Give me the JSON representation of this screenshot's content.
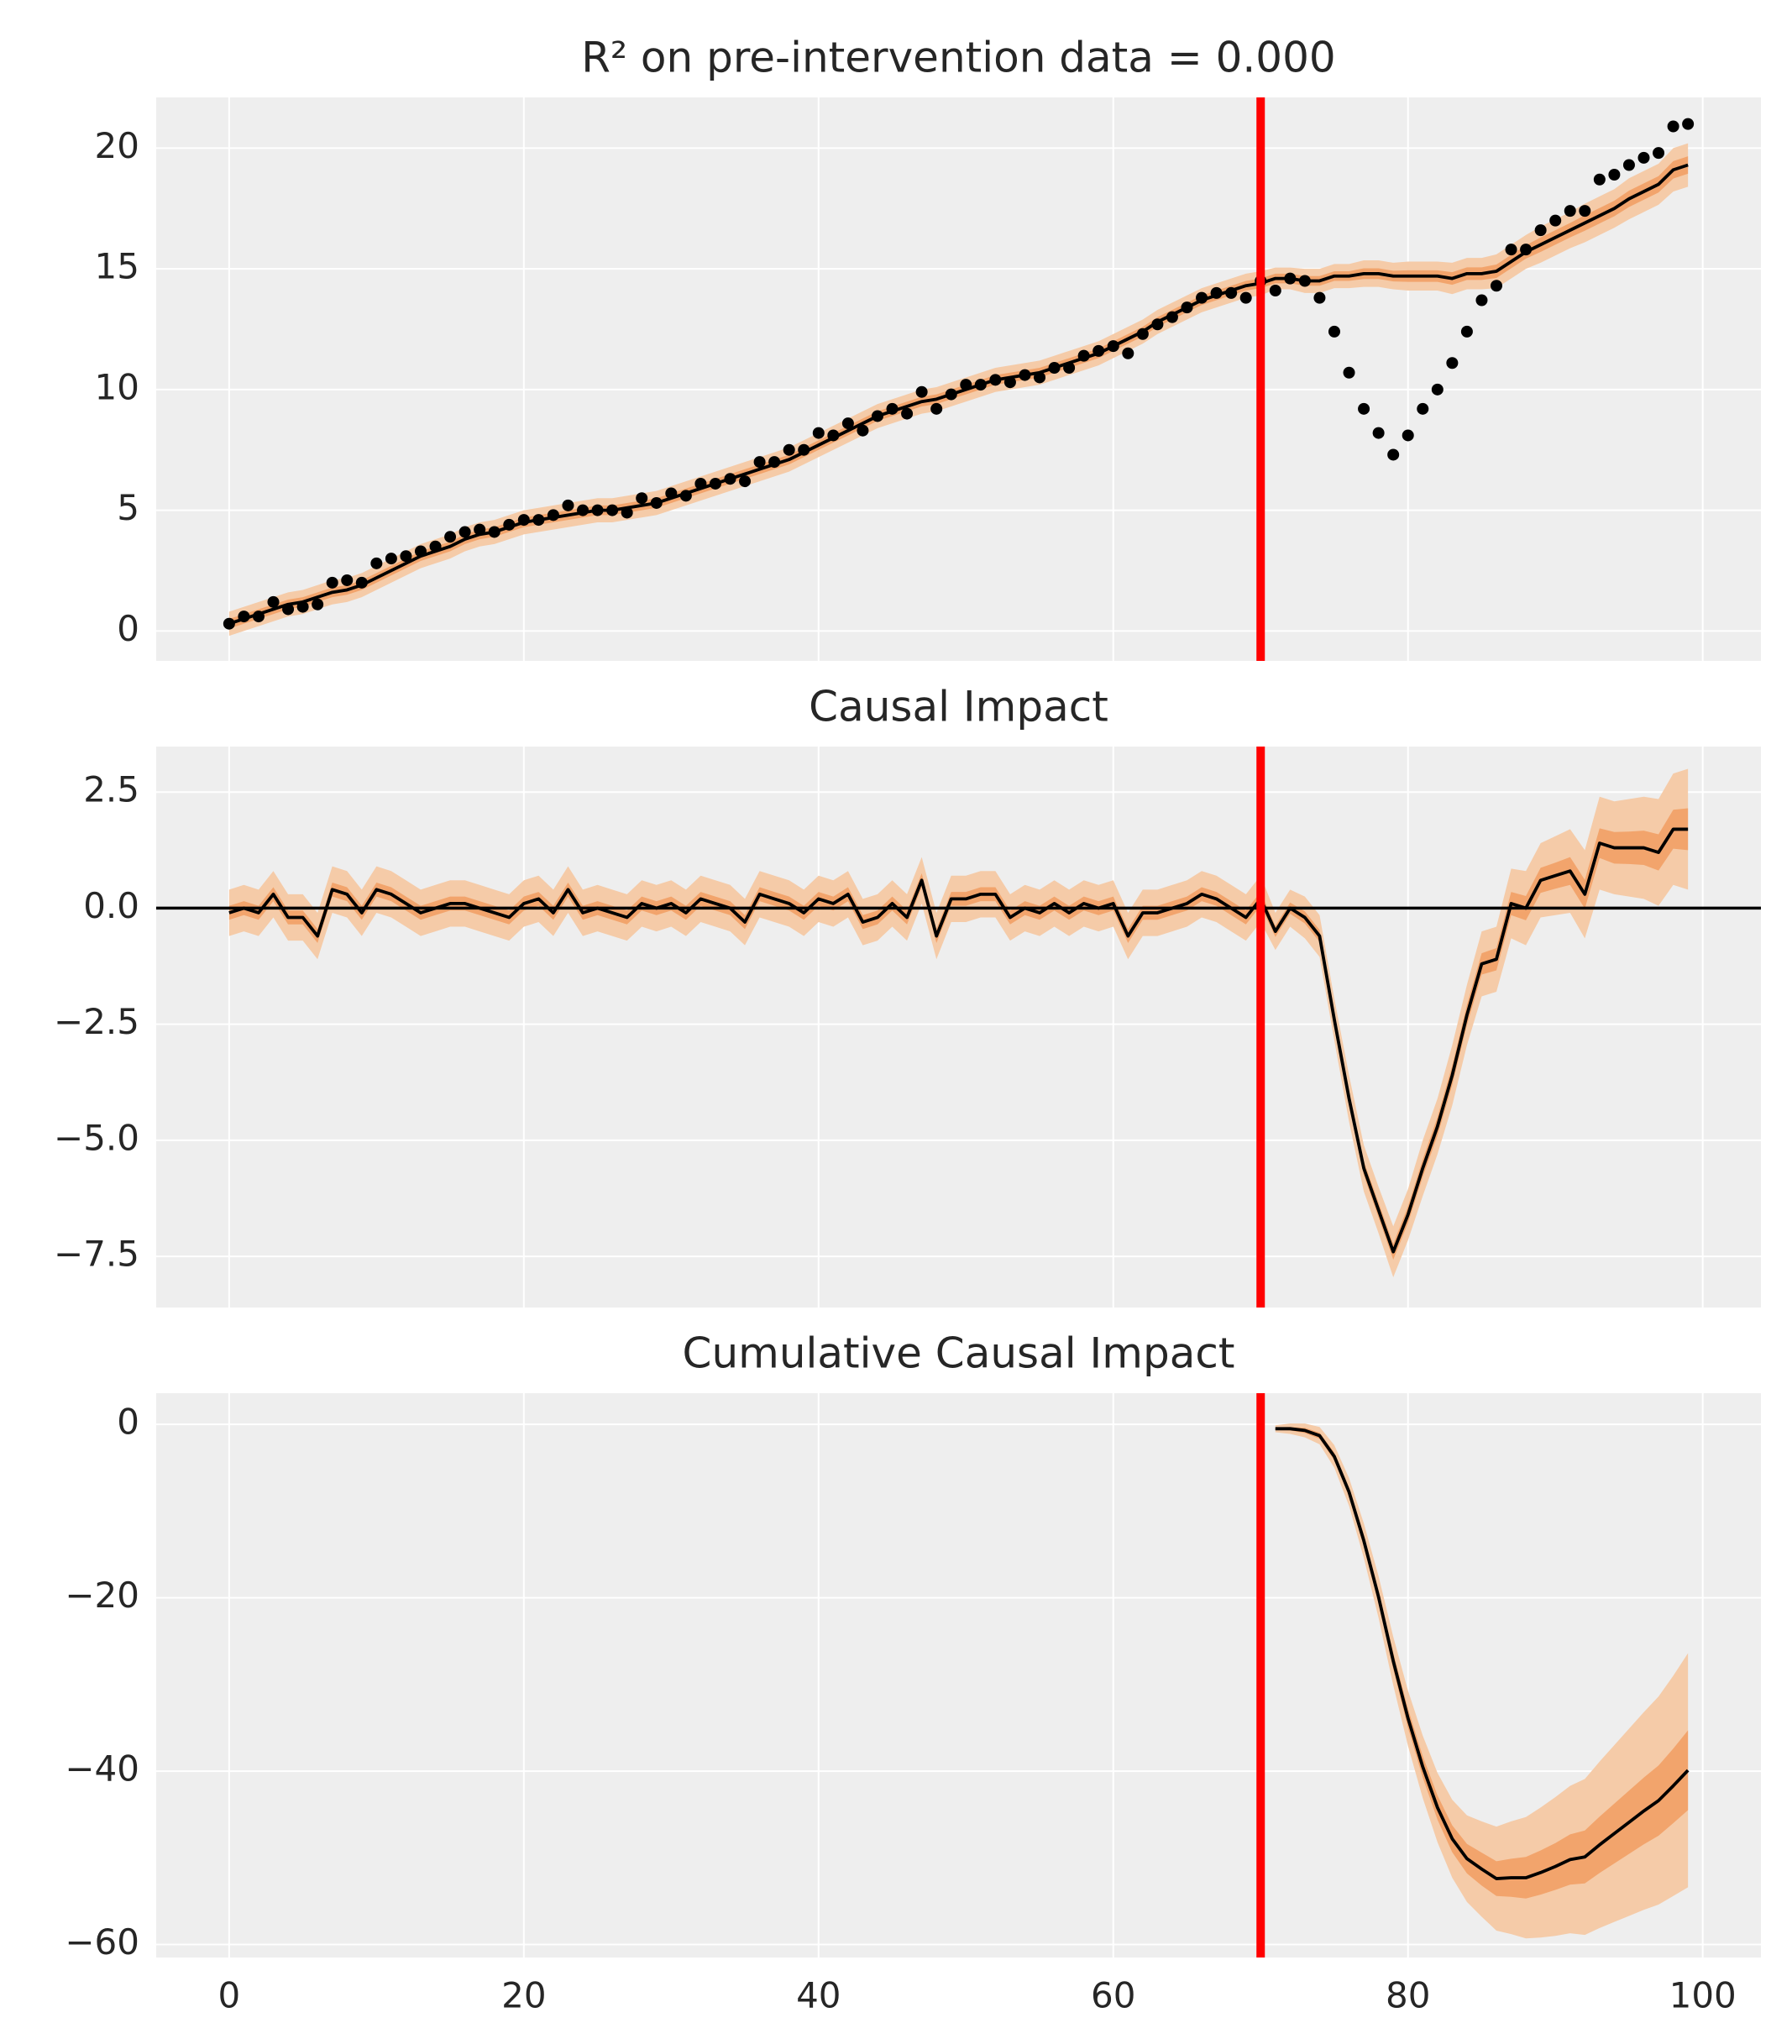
{
  "chart_data": [
    {
      "type": "line",
      "title": "R² on pre-intervention data = 0.000",
      "x": [
        0,
        1,
        2,
        3,
        4,
        5,
        6,
        7,
        8,
        9,
        10,
        11,
        12,
        13,
        14,
        15,
        16,
        17,
        18,
        19,
        20,
        21,
        22,
        23,
        24,
        25,
        26,
        27,
        28,
        29,
        30,
        31,
        32,
        33,
        34,
        35,
        36,
        37,
        38,
        39,
        40,
        41,
        42,
        43,
        44,
        45,
        46,
        47,
        48,
        49,
        50,
        51,
        52,
        53,
        54,
        55,
        56,
        57,
        58,
        59,
        60,
        61,
        62,
        63,
        64,
        65,
        66,
        67,
        68,
        69,
        70,
        71,
        72,
        73,
        74,
        75,
        76,
        77,
        78,
        79,
        80,
        81,
        82,
        83,
        84,
        85,
        86,
        87,
        88,
        89,
        90,
        91,
        92,
        93,
        94,
        95,
        96,
        97,
        98,
        99
      ],
      "series": [
        {
          "type": "line",
          "color": "#000000",
          "values": [
            0.3,
            0.5,
            0.7,
            0.9,
            1.1,
            1.2,
            1.4,
            1.6,
            1.7,
            1.9,
            2.2,
            2.5,
            2.8,
            3.1,
            3.3,
            3.5,
            3.8,
            4.0,
            4.1,
            4.3,
            4.5,
            4.6,
            4.7,
            4.8,
            4.9,
            5.0,
            5.0,
            5.1,
            5.2,
            5.3,
            5.5,
            5.7,
            5.9,
            6.1,
            6.3,
            6.5,
            6.7,
            6.9,
            7.1,
            7.4,
            7.7,
            8.0,
            8.3,
            8.6,
            8.9,
            9.1,
            9.3,
            9.5,
            9.6,
            9.8,
            10.0,
            10.2,
            10.4,
            10.5,
            10.6,
            10.7,
            10.9,
            11.1,
            11.3,
            11.5,
            11.8,
            12.1,
            12.4,
            12.8,
            13.1,
            13.4,
            13.7,
            13.9,
            14.1,
            14.3,
            14.4,
            14.6,
            14.6,
            14.5,
            14.5,
            14.7,
            14.7,
            14.8,
            14.8,
            14.7,
            14.7,
            14.7,
            14.7,
            14.6,
            14.8,
            14.8,
            14.9,
            15.3,
            15.7,
            16.0,
            16.3,
            16.6,
            16.9,
            17.2,
            17.5,
            17.9,
            18.2,
            18.5,
            19.1,
            19.3
          ],
          "hdi_94_halfwidth": [
            0.5,
            0.5,
            0.5,
            0.5,
            0.5,
            0.5,
            0.5,
            0.5,
            0.5,
            0.5,
            0.5,
            0.5,
            0.5,
            0.5,
            0.5,
            0.5,
            0.5,
            0.5,
            0.5,
            0.5,
            0.5,
            0.5,
            0.5,
            0.5,
            0.5,
            0.5,
            0.5,
            0.5,
            0.5,
            0.5,
            0.5,
            0.5,
            0.5,
            0.5,
            0.5,
            0.5,
            0.5,
            0.5,
            0.5,
            0.5,
            0.5,
            0.5,
            0.5,
            0.5,
            0.5,
            0.5,
            0.5,
            0.5,
            0.5,
            0.5,
            0.5,
            0.5,
            0.5,
            0.5,
            0.5,
            0.5,
            0.5,
            0.5,
            0.5,
            0.5,
            0.5,
            0.5,
            0.5,
            0.5,
            0.5,
            0.5,
            0.5,
            0.5,
            0.5,
            0.5,
            0.5,
            0.45,
            0.45,
            0.5,
            0.5,
            0.5,
            0.5,
            0.55,
            0.55,
            0.55,
            0.6,
            0.6,
            0.6,
            0.65,
            0.65,
            0.65,
            0.7,
            0.7,
            0.7,
            0.75,
            0.75,
            0.75,
            0.8,
            0.8,
            0.8,
            0.85,
            0.85,
            0.85,
            0.9,
            0.9
          ],
          "hdi_50_halfwidth": [
            0.2,
            0.2,
            0.2,
            0.2,
            0.2,
            0.2,
            0.2,
            0.2,
            0.2,
            0.2,
            0.2,
            0.2,
            0.2,
            0.2,
            0.2,
            0.2,
            0.2,
            0.2,
            0.2,
            0.2,
            0.2,
            0.2,
            0.2,
            0.2,
            0.2,
            0.2,
            0.2,
            0.2,
            0.2,
            0.2,
            0.2,
            0.2,
            0.2,
            0.2,
            0.2,
            0.2,
            0.2,
            0.2,
            0.2,
            0.2,
            0.2,
            0.2,
            0.2,
            0.2,
            0.2,
            0.2,
            0.2,
            0.2,
            0.2,
            0.2,
            0.2,
            0.2,
            0.2,
            0.2,
            0.2,
            0.2,
            0.2,
            0.2,
            0.2,
            0.2,
            0.2,
            0.2,
            0.2,
            0.2,
            0.2,
            0.2,
            0.2,
            0.2,
            0.2,
            0.2,
            0.2,
            0.2,
            0.2,
            0.2,
            0.2,
            0.2,
            0.2,
            0.22,
            0.22,
            0.22,
            0.24,
            0.24,
            0.24,
            0.26,
            0.26,
            0.26,
            0.28,
            0.28,
            0.28,
            0.3,
            0.3,
            0.3,
            0.32,
            0.32,
            0.32,
            0.34,
            0.34,
            0.34,
            0.36,
            0.36
          ]
        },
        {
          "type": "scatter",
          "color": "#000000",
          "values": [
            0.3,
            0.6,
            0.6,
            1.2,
            0.9,
            1.0,
            1.1,
            2.0,
            2.1,
            2.0,
            2.8,
            3.0,
            3.1,
            3.3,
            3.5,
            3.9,
            4.1,
            4.2,
            4.1,
            4.4,
            4.6,
            4.6,
            4.8,
            5.2,
            5.0,
            5.0,
            5.0,
            4.9,
            5.5,
            5.3,
            5.7,
            5.6,
            6.1,
            6.1,
            6.3,
            6.2,
            7.0,
            7.0,
            7.5,
            7.5,
            8.2,
            8.1,
            8.6,
            8.3,
            8.9,
            9.2,
            9.0,
            9.9,
            9.2,
            9.8,
            10.2,
            10.2,
            10.4,
            10.3,
            10.6,
            10.5,
            10.9,
            10.9,
            11.4,
            11.6,
            11.8,
            11.5,
            12.3,
            12.7,
            13.0,
            13.4,
            13.8,
            14.0,
            14.0,
            13.8,
            14.5,
            14.1,
            14.6,
            14.5,
            13.8,
            12.4,
            10.7,
            9.2,
            8.2,
            7.3,
            8.1,
            9.2,
            10.0,
            11.1,
            12.4,
            13.7,
            14.3,
            15.8,
            15.8,
            16.6,
            17.0,
            17.4,
            17.4,
            18.7,
            18.9,
            19.3,
            19.6,
            19.8,
            20.9,
            21.0
          ]
        }
      ],
      "intervention": 70,
      "intervention_color": "#ff0000",
      "band_colors": [
        "#f5cba8",
        "#f2a46c"
      ],
      "xlim": [
        -4.95,
        103.95
      ],
      "xticks": [
        0,
        20,
        40,
        60,
        80,
        100
      ],
      "xticklabels": false,
      "ylim": [
        -1.24,
        22.1
      ],
      "yticks": [
        0,
        5,
        10,
        15,
        20
      ],
      "grid": true
    },
    {
      "type": "line",
      "title": "Causal Impact",
      "x": [
        0,
        1,
        2,
        3,
        4,
        5,
        6,
        7,
        8,
        9,
        10,
        11,
        12,
        13,
        14,
        15,
        16,
        17,
        18,
        19,
        20,
        21,
        22,
        23,
        24,
        25,
        26,
        27,
        28,
        29,
        30,
        31,
        32,
        33,
        34,
        35,
        36,
        37,
        38,
        39,
        40,
        41,
        42,
        43,
        44,
        45,
        46,
        47,
        48,
        49,
        50,
        51,
        52,
        53,
        54,
        55,
        56,
        57,
        58,
        59,
        60,
        61,
        62,
        63,
        64,
        65,
        66,
        67,
        68,
        69,
        70,
        71,
        72,
        73,
        74,
        75,
        76,
        77,
        78,
        79,
        80,
        81,
        82,
        83,
        84,
        85,
        86,
        87,
        88,
        89,
        90,
        91,
        92,
        93,
        94,
        95,
        96,
        97,
        98,
        99
      ],
      "series": [
        {
          "type": "line",
          "color": "#000000",
          "values": [
            -0.1,
            0.0,
            -0.1,
            0.3,
            -0.2,
            -0.2,
            -0.6,
            0.4,
            0.3,
            -0.1,
            0.4,
            0.3,
            0.1,
            -0.1,
            0.0,
            0.1,
            0.1,
            0.0,
            -0.1,
            -0.2,
            0.1,
            0.2,
            -0.1,
            0.4,
            -0.1,
            0.0,
            -0.1,
            -0.2,
            0.1,
            0.0,
            0.1,
            -0.1,
            0.2,
            0.1,
            0.0,
            -0.3,
            0.3,
            0.2,
            0.1,
            -0.1,
            0.2,
            0.1,
            0.3,
            -0.3,
            -0.2,
            0.1,
            -0.2,
            0.6,
            -0.6,
            0.2,
            0.2,
            0.3,
            0.3,
            -0.2,
            0.0,
            -0.1,
            0.1,
            -0.1,
            0.1,
            0.0,
            0.1,
            -0.6,
            -0.1,
            -0.1,
            0.0,
            0.1,
            0.3,
            0.2,
            0.0,
            -0.2,
            0.2,
            -0.5,
            0.0,
            -0.2,
            -0.6,
            -2.4,
            -4.1,
            -5.6,
            -6.5,
            -7.4,
            -6.6,
            -5.6,
            -4.7,
            -3.6,
            -2.3,
            -1.2,
            -1.1,
            0.1,
            0.0,
            0.6,
            0.7,
            0.8,
            0.3,
            1.4,
            1.3,
            1.3,
            1.3,
            1.2,
            1.7,
            1.7
          ],
          "hdi_94_halfwidth": [
            0.5,
            0.5,
            0.5,
            0.5,
            0.5,
            0.5,
            0.5,
            0.5,
            0.5,
            0.5,
            0.5,
            0.5,
            0.5,
            0.5,
            0.5,
            0.5,
            0.5,
            0.5,
            0.5,
            0.5,
            0.5,
            0.5,
            0.5,
            0.5,
            0.5,
            0.5,
            0.5,
            0.5,
            0.5,
            0.5,
            0.5,
            0.5,
            0.5,
            0.5,
            0.5,
            0.5,
            0.5,
            0.5,
            0.5,
            0.5,
            0.5,
            0.5,
            0.5,
            0.5,
            0.5,
            0.5,
            0.5,
            0.5,
            0.5,
            0.5,
            0.5,
            0.5,
            0.5,
            0.5,
            0.5,
            0.5,
            0.5,
            0.5,
            0.5,
            0.5,
            0.5,
            0.5,
            0.5,
            0.5,
            0.5,
            0.5,
            0.5,
            0.5,
            0.5,
            0.5,
            0.5,
            0.4,
            0.4,
            0.45,
            0.45,
            0.45,
            0.5,
            0.5,
            0.5,
            0.55,
            0.55,
            0.6,
            0.6,
            0.65,
            0.65,
            0.7,
            0.7,
            0.75,
            0.8,
            0.8,
            0.85,
            0.9,
            0.95,
            1.0,
            1.0,
            1.05,
            1.1,
            1.15,
            1.2,
            1.3
          ],
          "hdi_50_halfwidth": [
            0.15,
            0.15,
            0.15,
            0.15,
            0.15,
            0.15,
            0.15,
            0.15,
            0.15,
            0.15,
            0.15,
            0.15,
            0.15,
            0.15,
            0.15,
            0.15,
            0.15,
            0.15,
            0.15,
            0.15,
            0.15,
            0.15,
            0.15,
            0.15,
            0.15,
            0.15,
            0.15,
            0.15,
            0.15,
            0.15,
            0.15,
            0.15,
            0.15,
            0.15,
            0.15,
            0.15,
            0.15,
            0.15,
            0.15,
            0.15,
            0.15,
            0.15,
            0.15,
            0.15,
            0.15,
            0.15,
            0.15,
            0.15,
            0.15,
            0.15,
            0.15,
            0.15,
            0.15,
            0.15,
            0.15,
            0.15,
            0.15,
            0.15,
            0.15,
            0.15,
            0.15,
            0.15,
            0.15,
            0.15,
            0.15,
            0.15,
            0.15,
            0.15,
            0.15,
            0.15,
            0.15,
            0.12,
            0.12,
            0.13,
            0.13,
            0.14,
            0.15,
            0.15,
            0.16,
            0.17,
            0.18,
            0.19,
            0.2,
            0.21,
            0.22,
            0.23,
            0.24,
            0.25,
            0.26,
            0.27,
            0.28,
            0.3,
            0.31,
            0.32,
            0.34,
            0.35,
            0.37,
            0.39,
            0.42,
            0.45
          ]
        }
      ],
      "hline": 0,
      "intervention": 70,
      "intervention_color": "#ff0000",
      "band_colors": [
        "#f5cba8",
        "#f2a46c"
      ],
      "xlim": [
        -4.95,
        103.95
      ],
      "xticks": [
        0,
        20,
        40,
        60,
        80,
        100
      ],
      "xticklabels": false,
      "ylim": [
        -8.6,
        3.48
      ],
      "yticks": [
        {
          "value": -7.5,
          "label": "−7.5"
        },
        {
          "value": -5,
          "label": "−5.0"
        },
        {
          "value": -2.5,
          "label": "−2.5"
        },
        {
          "value": 0,
          "label": "0.0"
        },
        2.5
      ],
      "grid": true
    },
    {
      "type": "line",
      "title": "Cumulative Causal Impact",
      "x": [
        71,
        72,
        73,
        74,
        75,
        76,
        77,
        78,
        79,
        80,
        81,
        82,
        83,
        84,
        85,
        86,
        87,
        88,
        89,
        90,
        91,
        92,
        93,
        94,
        95,
        96,
        97,
        98,
        99
      ],
      "series": [
        {
          "type": "line",
          "color": "#000000",
          "values": [
            -0.5,
            -0.5,
            -0.7,
            -1.3,
            -3.7,
            -7.8,
            -13.4,
            -19.9,
            -27.3,
            -33.9,
            -39.5,
            -44.2,
            -47.8,
            -50.1,
            -51.3,
            -52.4,
            -52.3,
            -52.3,
            -51.7,
            -51.0,
            -50.2,
            -49.9,
            -48.5,
            -47.2,
            -45.9,
            -44.6,
            -43.4,
            -41.7,
            -39.9
          ],
          "hdi_94_halfwidth": [
            0.4,
            0.6,
            0.8,
            1.0,
            1.3,
            1.6,
            2.0,
            2.4,
            2.8,
            3.2,
            3.6,
            4.0,
            4.5,
            5.0,
            5.5,
            6.0,
            6.5,
            7.0,
            7.5,
            8.0,
            8.5,
            9.0,
            9.6,
            10.2,
            10.8,
            11.4,
            12.0,
            12.7,
            13.5
          ],
          "hdi_50_halfwidth": [
            0.15,
            0.2,
            0.3,
            0.35,
            0.45,
            0.55,
            0.7,
            0.8,
            0.95,
            1.1,
            1.25,
            1.4,
            1.55,
            1.7,
            1.9,
            2.0,
            2.2,
            2.4,
            2.55,
            2.7,
            2.9,
            3.05,
            3.25,
            3.45,
            3.65,
            3.85,
            4.05,
            4.3,
            4.6
          ]
        }
      ],
      "intervention": 70,
      "intervention_color": "#ff0000",
      "band_colors": [
        "#f5cba8",
        "#f2a46c"
      ],
      "xlim": [
        -4.95,
        103.95
      ],
      "xticks": [
        0,
        20,
        40,
        60,
        80,
        100
      ],
      "xticklabels": true,
      "ylim": [
        -61.5,
        3.6
      ],
      "yticks": [
        {
          "value": -60,
          "label": "−60"
        },
        {
          "value": -40,
          "label": "−40"
        },
        {
          "value": -20,
          "label": "−20"
        },
        0
      ],
      "grid": true
    }
  ]
}
